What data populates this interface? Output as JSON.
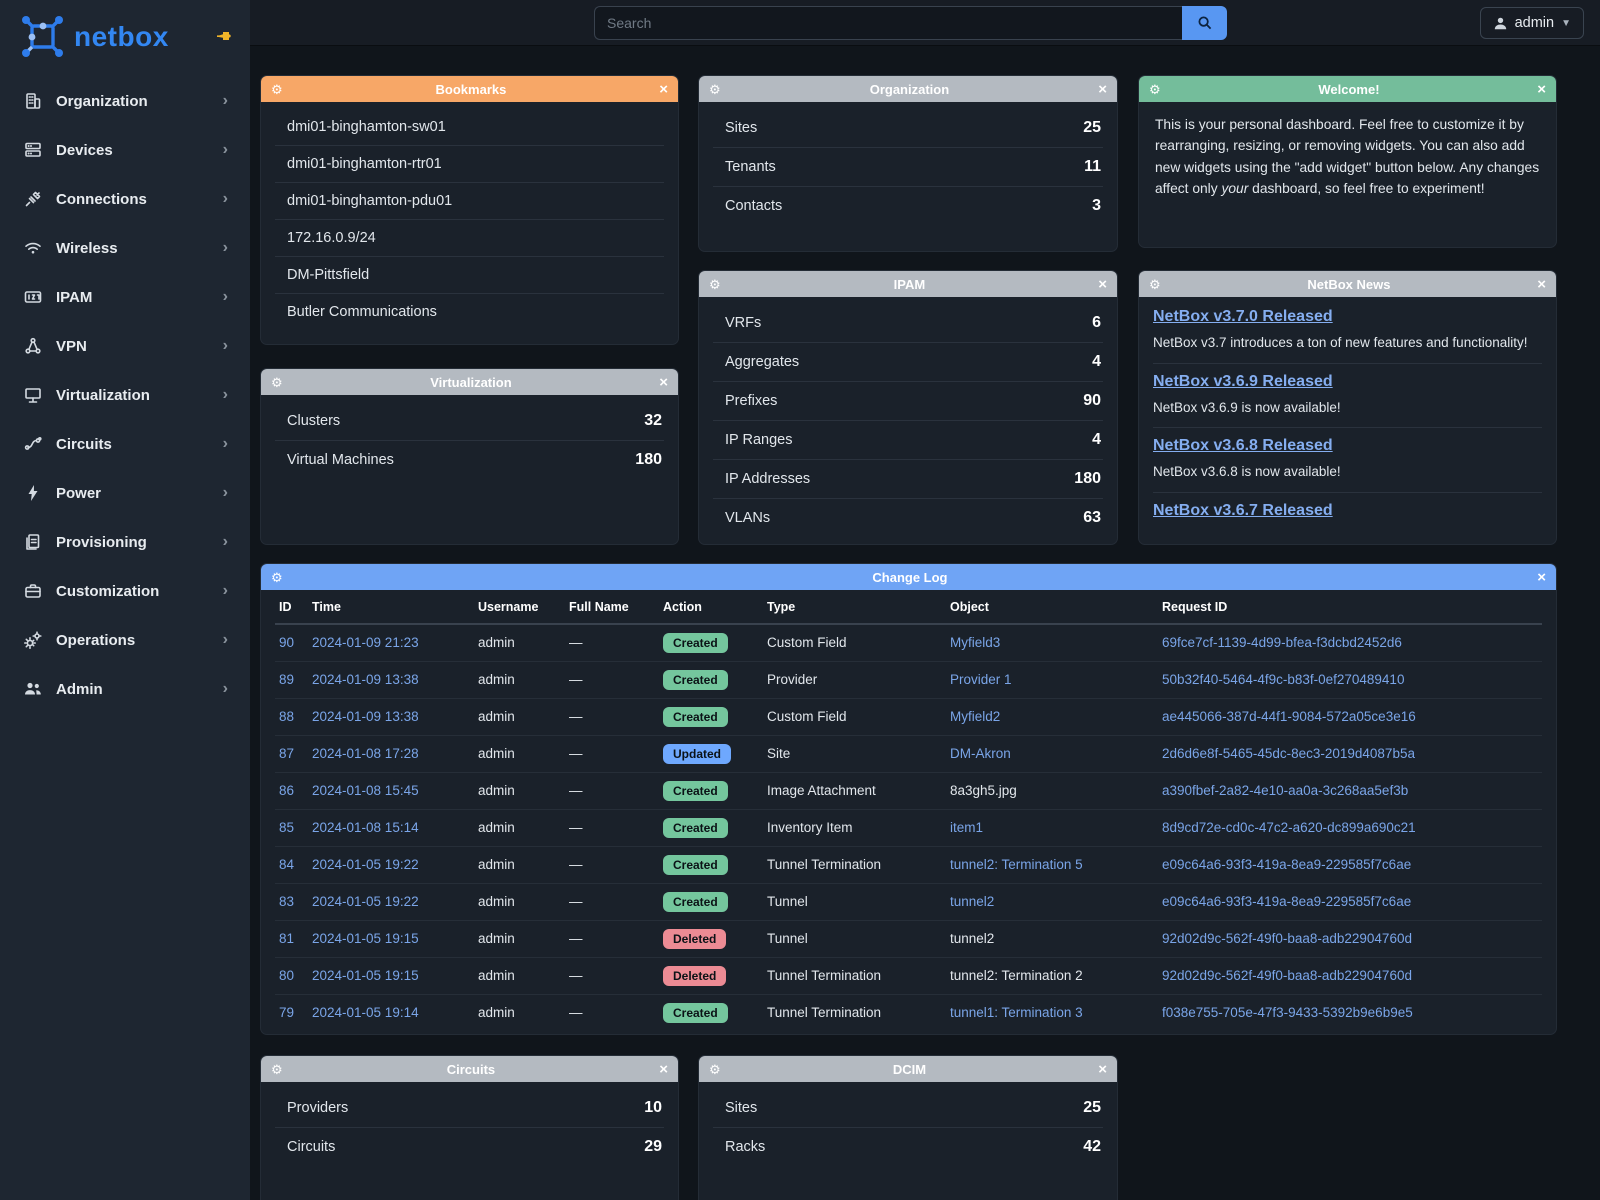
{
  "topbar": {
    "search_placeholder": "Search",
    "user": "admin"
  },
  "sidebar": {
    "brand": "netbox",
    "items": [
      {
        "label": "Organization",
        "icon": "building-icon"
      },
      {
        "label": "Devices",
        "icon": "server-icon"
      },
      {
        "label": "Connections",
        "icon": "plug-icon"
      },
      {
        "label": "Wireless",
        "icon": "wifi-icon"
      },
      {
        "label": "IPAM",
        "icon": "ipam-icon"
      },
      {
        "label": "VPN",
        "icon": "network-icon"
      },
      {
        "label": "Virtualization",
        "icon": "monitor-icon"
      },
      {
        "label": "Circuits",
        "icon": "circuit-icon"
      },
      {
        "label": "Power",
        "icon": "bolt-icon"
      },
      {
        "label": "Provisioning",
        "icon": "document-icon"
      },
      {
        "label": "Customization",
        "icon": "briefcase-icon"
      },
      {
        "label": "Operations",
        "icon": "gears-icon"
      },
      {
        "label": "Admin",
        "icon": "users-icon"
      }
    ]
  },
  "colors": {
    "accent_orange": "#f7a767",
    "header_gray": "#b4bac1",
    "header_green": "#74bd9b",
    "header_blue": "#6fa4f5",
    "badge_created": "#74c69d",
    "badge_updated": "#6ea8fe",
    "badge_deleted": "#ec8b94",
    "link": "#7aa5e8",
    "brand_blue": "#3387f2",
    "search_button": "#5897f2"
  },
  "widgets": {
    "bookmarks": {
      "title": "Bookmarks",
      "items": [
        "dmi01-binghamton-sw01",
        "dmi01-binghamton-rtr01",
        "dmi01-binghamton-pdu01",
        "172.16.0.9/24",
        "DM-Pittsfield",
        "Butler Communications"
      ]
    },
    "organization": {
      "title": "Organization",
      "rows": [
        {
          "label": "Sites",
          "value": "25"
        },
        {
          "label": "Tenants",
          "value": "11"
        },
        {
          "label": "Contacts",
          "value": "3"
        }
      ]
    },
    "welcome": {
      "title": "Welcome!",
      "text_before": "This is your personal dashboard. Feel free to customize it by rearranging, resizing, or removing widgets. You can also add new widgets using the \"add widget\" button below. Any changes affect only ",
      "text_italic": "your",
      "text_after": " dashboard, so feel free to experiment!"
    },
    "virtualization": {
      "title": "Virtualization",
      "rows": [
        {
          "label": "Clusters",
          "value": "32"
        },
        {
          "label": "Virtual Machines",
          "value": "180"
        }
      ]
    },
    "ipam": {
      "title": "IPAM",
      "rows": [
        {
          "label": "VRFs",
          "value": "6"
        },
        {
          "label": "Aggregates",
          "value": "4"
        },
        {
          "label": "Prefixes",
          "value": "90"
        },
        {
          "label": "IP Ranges",
          "value": "4"
        },
        {
          "label": "IP Addresses",
          "value": "180"
        },
        {
          "label": "VLANs",
          "value": "63"
        }
      ]
    },
    "news": {
      "title": "NetBox News",
      "items": [
        {
          "title": "NetBox v3.7.0 Released",
          "summary": "NetBox v3.7 introduces a ton of new features and functionality!"
        },
        {
          "title": "NetBox v3.6.9 Released",
          "summary": "NetBox v3.6.9 is now available!"
        },
        {
          "title": "NetBox v3.6.8 Released",
          "summary": "NetBox v3.6.8 is now available!"
        },
        {
          "title": "NetBox v3.6.7 Released",
          "summary": ""
        }
      ]
    },
    "changelog": {
      "title": "Change Log",
      "columns": [
        "ID",
        "Time",
        "Username",
        "Full Name",
        "Action",
        "Type",
        "Object",
        "Request ID"
      ],
      "rows": [
        {
          "id": "90",
          "time": "2024-01-09 21:23",
          "username": "admin",
          "full_name": "—",
          "action": "Created",
          "type": "Custom Field",
          "object": "Myfield3",
          "object_is_link": true,
          "request_id": "69fce7cf-1139-4d99-bfea-f3dcbd2452d6"
        },
        {
          "id": "89",
          "time": "2024-01-09 13:38",
          "username": "admin",
          "full_name": "—",
          "action": "Created",
          "type": "Provider",
          "object": "Provider 1",
          "object_is_link": true,
          "request_id": "50b32f40-5464-4f9c-b83f-0ef270489410"
        },
        {
          "id": "88",
          "time": "2024-01-09 13:38",
          "username": "admin",
          "full_name": "—",
          "action": "Created",
          "type": "Custom Field",
          "object": "Myfield2",
          "object_is_link": true,
          "request_id": "ae445066-387d-44f1-9084-572a05ce3e16"
        },
        {
          "id": "87",
          "time": "2024-01-08 17:28",
          "username": "admin",
          "full_name": "—",
          "action": "Updated",
          "type": "Site",
          "object": "DM-Akron",
          "object_is_link": true,
          "request_id": "2d6d6e8f-5465-45dc-8ec3-2019d4087b5a"
        },
        {
          "id": "86",
          "time": "2024-01-08 15:45",
          "username": "admin",
          "full_name": "—",
          "action": "Created",
          "type": "Image Attachment",
          "object": "8a3gh5.jpg",
          "object_is_link": false,
          "request_id": "a390fbef-2a82-4e10-aa0a-3c268aa5ef3b"
        },
        {
          "id": "85",
          "time": "2024-01-08 15:14",
          "username": "admin",
          "full_name": "—",
          "action": "Created",
          "type": "Inventory Item",
          "object": "item1",
          "object_is_link": true,
          "request_id": "8d9cd72e-cd0c-47c2-a620-dc899a690c21"
        },
        {
          "id": "84",
          "time": "2024-01-05 19:22",
          "username": "admin",
          "full_name": "—",
          "action": "Created",
          "type": "Tunnel Termination",
          "object": "tunnel2: Termination 5",
          "object_is_link": true,
          "request_id": "e09c64a6-93f3-419a-8ea9-229585f7c6ae"
        },
        {
          "id": "83",
          "time": "2024-01-05 19:22",
          "username": "admin",
          "full_name": "—",
          "action": "Created",
          "type": "Tunnel",
          "object": "tunnel2",
          "object_is_link": true,
          "request_id": "e09c64a6-93f3-419a-8ea9-229585f7c6ae"
        },
        {
          "id": "81",
          "time": "2024-01-05 19:15",
          "username": "admin",
          "full_name": "—",
          "action": "Deleted",
          "type": "Tunnel",
          "object": "tunnel2",
          "object_is_link": false,
          "request_id": "92d02d9c-562f-49f0-baa8-adb22904760d"
        },
        {
          "id": "80",
          "time": "2024-01-05 19:15",
          "username": "admin",
          "full_name": "—",
          "action": "Deleted",
          "type": "Tunnel Termination",
          "object": "tunnel2: Termination 2",
          "object_is_link": false,
          "request_id": "92d02d9c-562f-49f0-baa8-adb22904760d"
        },
        {
          "id": "79",
          "time": "2024-01-05 19:14",
          "username": "admin",
          "full_name": "—",
          "action": "Created",
          "type": "Tunnel Termination",
          "object": "tunnel1: Termination 3",
          "object_is_link": true,
          "request_id": "f038e755-705e-47f3-9433-5392b9e6b9e5"
        }
      ]
    },
    "circuits": {
      "title": "Circuits",
      "rows": [
        {
          "label": "Providers",
          "value": "10"
        },
        {
          "label": "Circuits",
          "value": "29"
        }
      ]
    },
    "dcim": {
      "title": "DCIM",
      "rows": [
        {
          "label": "Sites",
          "value": "25"
        },
        {
          "label": "Racks",
          "value": "42"
        }
      ]
    }
  }
}
